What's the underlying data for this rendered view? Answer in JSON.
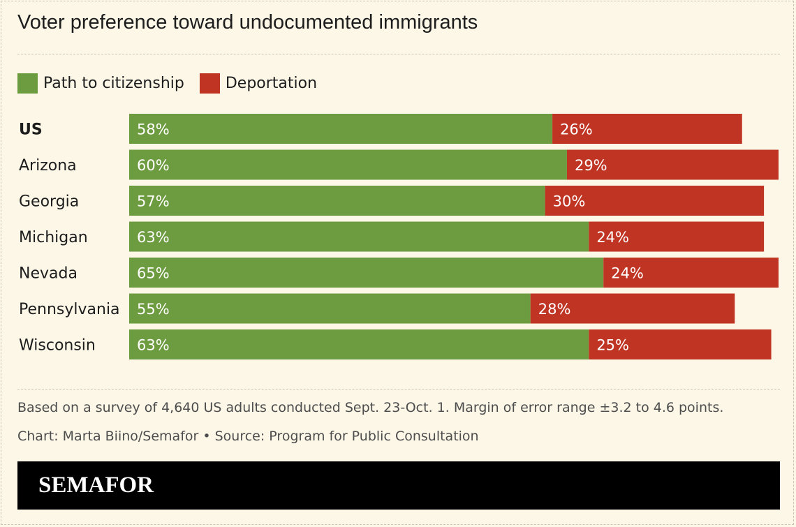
{
  "title": "Voter preference toward undocumented immigrants",
  "legend": [
    {
      "label": "Path to citizenship",
      "color": "#6d9b3f"
    },
    {
      "label": "Deportation",
      "color": "#bf3423"
    }
  ],
  "chart_data": {
    "type": "bar",
    "orientation": "horizontal",
    "stacked": true,
    "title": "Voter preference toward undocumented immigrants",
    "categories": [
      "US",
      "Arizona",
      "Georgia",
      "Michigan",
      "Nevada",
      "Pennsylvania",
      "Wisconsin"
    ],
    "emphasized_category": "US",
    "series": [
      {
        "name": "Path to citizenship",
        "color": "#6d9b3f",
        "values": [
          58,
          60,
          57,
          63,
          65,
          55,
          63
        ],
        "labels": [
          "58%",
          "60%",
          "57%",
          "63%",
          "65%",
          "55%",
          "63%"
        ]
      },
      {
        "name": "Deportation",
        "color": "#bf3423",
        "values": [
          26,
          29,
          30,
          24,
          24,
          28,
          25
        ],
        "labels": [
          "26%",
          "29%",
          "30%",
          "24%",
          "24%",
          "28%",
          "25%"
        ]
      }
    ],
    "xlim": [
      0,
      89
    ],
    "grid": false,
    "legend_position": "top-left"
  },
  "footnote": "Based on a survey of 4,640 US adults conducted Sept. 23-Oct. 1. Margin of error range ±3.2 to 4.6 points.",
  "credit": "Chart: Marta Biino/Semafor • Source: Program for Public Consultation",
  "brand": "SEMAFOR"
}
